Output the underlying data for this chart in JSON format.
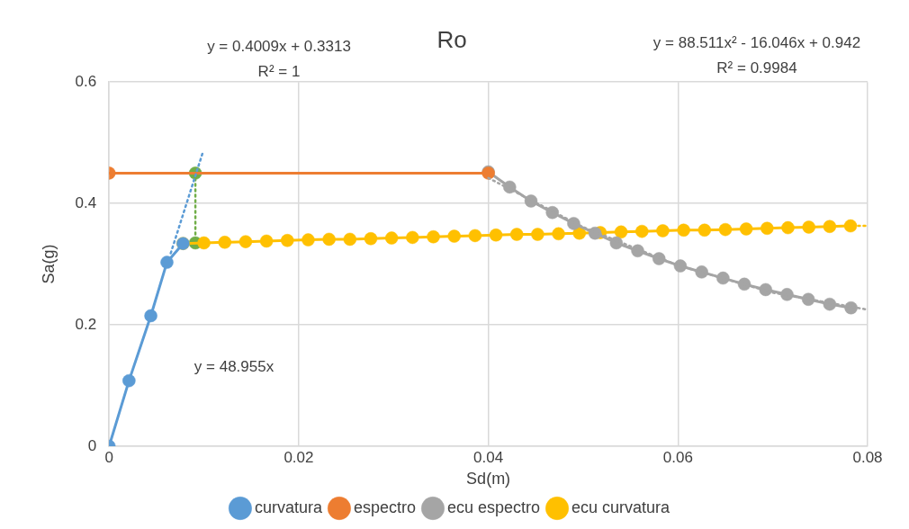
{
  "chart_data": {
    "type": "line",
    "title": "Ro",
    "xlabel": "Sd(m)",
    "ylabel": "Sa(g)",
    "xlim": [
      0,
      0.08
    ],
    "xticks": [
      0,
      0.02,
      0.04,
      0.06,
      0.08
    ],
    "ylim": [
      0,
      0.6
    ],
    "yticks": [
      0,
      0.2,
      0.4,
      0.6
    ],
    "grid": true,
    "legend": "bottom",
    "marker": "circle",
    "line_style": "solid",
    "annotations": [
      "y = 0.4009x + 0.3313",
      "R² = 1",
      "y = 88.511x² - 16.046x + 0.942",
      "R² = 0.9984",
      "y = 48.955x"
    ],
    "series": [
      {
        "type": "line",
        "color": "#5b9bd5",
        "line_style": "dotted",
        "marker": "none",
        "x": [
          0.0065,
          0.0099
        ],
        "values": [
          0.318,
          0.485
        ]
      },
      {
        "type": "line",
        "color": "#a5a5a5",
        "line_style": "dotted",
        "marker": "none",
        "x": [
          0.04,
          0.05,
          0.06,
          0.07,
          0.08
        ],
        "values": [
          0.442,
          0.361,
          0.298,
          0.253,
          0.225
        ]
      },
      {
        "type": "line",
        "color": "#ffc000",
        "line_style": "dotted",
        "marker": "none",
        "x": [
          0.079,
          0.08
        ],
        "values": [
          0.363,
          0.363
        ]
      },
      {
        "name": "curvatura",
        "color": "#5b9bd5",
        "x": [
          0,
          0.0021,
          0.0044,
          0.0061,
          0.0078
        ],
        "values": [
          0,
          0.108,
          0.215,
          0.303,
          0.334
        ]
      },
      {
        "name": "espectro",
        "color": "#ed7d31",
        "x": [
          0,
          0.04
        ],
        "values": [
          0.45,
          0.45
        ]
      },
      {
        "name": "ecu espectro",
        "color": "#a5a5a5",
        "x": [
          0.04,
          0.04225,
          0.0445,
          0.04675,
          0.049,
          0.05125,
          0.0535,
          0.05575,
          0.058,
          0.06025,
          0.0625,
          0.06475,
          0.067,
          0.06925,
          0.0715,
          0.07375,
          0.076,
          0.07825
        ],
        "values": [
          0.452,
          0.427,
          0.404,
          0.385,
          0.367,
          0.351,
          0.335,
          0.322,
          0.309,
          0.297,
          0.287,
          0.277,
          0.267,
          0.258,
          0.25,
          0.242,
          0.234,
          0.228
        ]
      },
      {
        "name": "ecu curvatura",
        "color": "#ffc000",
        "x": [
          0.0078,
          0.01,
          0.0122,
          0.0144,
          0.0166,
          0.0188,
          0.021,
          0.0232,
          0.0254,
          0.0276,
          0.0298,
          0.032,
          0.0342,
          0.0364,
          0.0386,
          0.0408,
          0.043,
          0.0452,
          0.0474,
          0.0496,
          0.0518,
          0.054,
          0.0562,
          0.0584,
          0.0606,
          0.0628,
          0.065,
          0.0672,
          0.0694,
          0.0716,
          0.0738,
          0.076,
          0.0782
        ],
        "values": [
          0.334,
          0.335,
          0.336,
          0.337,
          0.338,
          0.339,
          0.34,
          0.341,
          0.341,
          0.342,
          0.343,
          0.344,
          0.345,
          0.346,
          0.347,
          0.348,
          0.349,
          0.349,
          0.35,
          0.351,
          0.352,
          0.353,
          0.354,
          0.355,
          0.356,
          0.356,
          0.357,
          0.358,
          0.359,
          0.36,
          0.361,
          0.362,
          0.363
        ]
      },
      {
        "type": "line",
        "color": "#70ad47",
        "line_style": "dotted",
        "x": [
          0.0091,
          0.0091
        ],
        "values": [
          0.45,
          0.335
        ]
      }
    ]
  }
}
